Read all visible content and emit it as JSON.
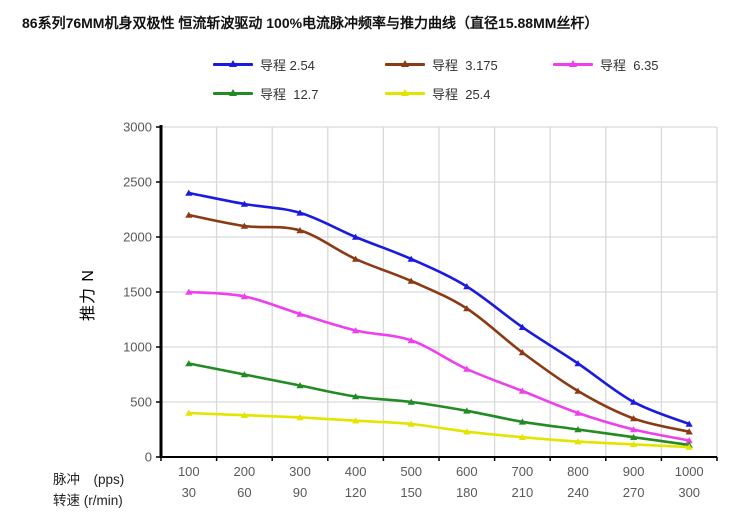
{
  "title": "86系列76MM机身双极性 恒流斩波驱动 100%电流脉冲频率与推力曲线（直径15.88MM丝杆）",
  "colors": {
    "background": "#ffffff",
    "grid": "#d9d9d9",
    "axis": "#000000",
    "tick_text": "#595959",
    "label_text": "#333333"
  },
  "x_row_labels": {
    "pulse": "脉冲　(pps)",
    "speed": "转速 (r/min)"
  },
  "chart_data": {
    "type": "line",
    "title": "86系列76MM机身双极性 恒流斩波驱动 100%电流脉冲频率与推力曲线（直径15.88MM丝杆）",
    "ylabel": "推力 N",
    "xlabel_rows": [
      "脉冲　(pps)",
      "转速 (r/min)"
    ],
    "x_pps": [
      100,
      200,
      300,
      400,
      500,
      600,
      700,
      800,
      900,
      1000
    ],
    "x_rpm": [
      30,
      60,
      90,
      120,
      150,
      180,
      210,
      240,
      270,
      300
    ],
    "ylim": [
      0,
      3000
    ],
    "ytick_step": 500,
    "grid": true,
    "legend_position": "top",
    "marker": "triangle",
    "series": [
      {
        "name": "导程 2.54",
        "color": "#1b1bde",
        "values": [
          2400,
          2300,
          2220,
          2000,
          1800,
          1550,
          1180,
          850,
          500,
          300
        ]
      },
      {
        "name": "导程  3.175",
        "color": "#8b3a13",
        "values": [
          2200,
          2100,
          2060,
          1800,
          1600,
          1350,
          950,
          600,
          350,
          230
        ]
      },
      {
        "name": "导程  6.35",
        "color": "#ee3fee",
        "values": [
          1500,
          1460,
          1300,
          1150,
          1060,
          800,
          600,
          400,
          250,
          150
        ]
      },
      {
        "name": "导程  12.7",
        "color": "#238b23",
        "values": [
          850,
          750,
          650,
          550,
          500,
          420,
          320,
          250,
          180,
          110
        ]
      },
      {
        "name": "导程  25.4",
        "color": "#e4e400",
        "values": [
          400,
          380,
          360,
          330,
          300,
          230,
          180,
          140,
          115,
          90
        ]
      }
    ]
  }
}
